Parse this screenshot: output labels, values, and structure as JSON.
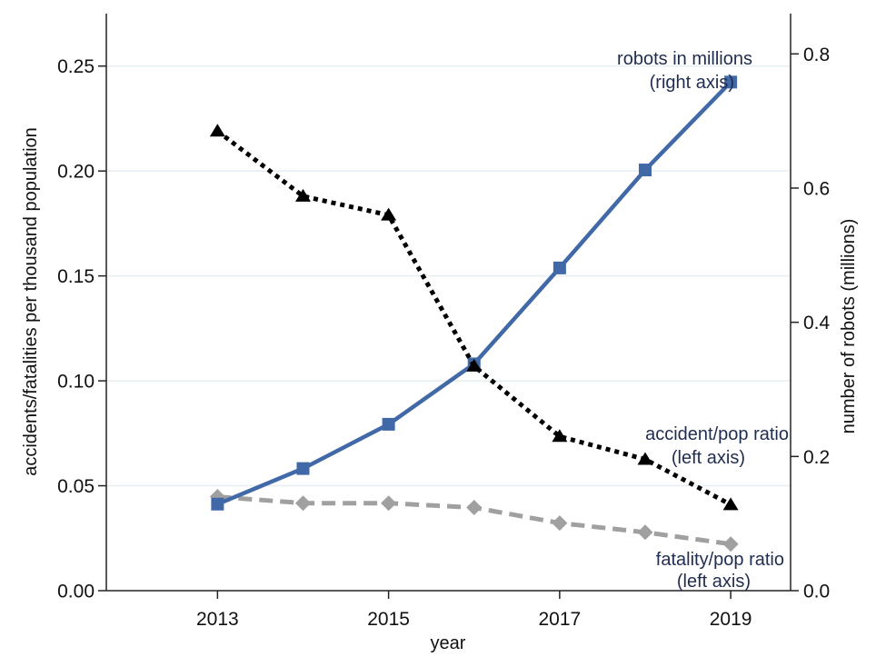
{
  "chart_data": {
    "type": "line",
    "title": "",
    "xlabel": "year",
    "ylabel_left": "accidents/fatalities per thousand population",
    "ylabel_right": "number of robots (millions)",
    "x": [
      2013,
      2014,
      2015,
      2016,
      2017,
      2018,
      2019
    ],
    "xlim": [
      2011.7,
      2019.7
    ],
    "x_ticks": [
      2013,
      2015,
      2017,
      2019
    ],
    "x_tick_labels": [
      "2013",
      "2015",
      "2017",
      "2019"
    ],
    "ylim_left": [
      0,
      0.275
    ],
    "y_ticks_left": [
      0,
      0.05,
      0.1,
      0.15,
      0.2,
      0.25
    ],
    "y_tick_labels_left": [
      "0.00",
      "0.05",
      "0.10",
      "0.15",
      "0.20",
      "0.25"
    ],
    "ylim_right": [
      0,
      0.86
    ],
    "y_ticks_right": [
      0,
      0.2,
      0.4,
      0.6,
      0.8
    ],
    "y_tick_labels_right": [
      "0.0",
      "0.2",
      "0.4",
      "0.6",
      "0.8"
    ],
    "grid": true,
    "legend": "none (inline annotations)",
    "series": [
      {
        "name": "robots in millions",
        "axis": "right",
        "style": "solid",
        "marker": "square",
        "color": "#4169a8",
        "values": [
          0.129,
          0.182,
          0.248,
          0.338,
          0.481,
          0.627,
          0.758
        ],
        "annotation": [
          "robots in millions",
          "(right axis)"
        ]
      },
      {
        "name": "accident/pop ratio",
        "axis": "left",
        "style": "dotted",
        "marker": "triangle",
        "color": "#000000",
        "values": [
          0.219,
          0.188,
          0.179,
          0.107,
          0.0735,
          0.0626,
          0.041
        ],
        "annotation": [
          "accident/pop ratio",
          "(left axis)"
        ]
      },
      {
        "name": "fatality/pop ratio",
        "axis": "left",
        "style": "dashed",
        "marker": "diamond",
        "color": "#a0a0a0",
        "values": [
          0.0448,
          0.0417,
          0.0417,
          0.0396,
          0.0322,
          0.0278,
          0.0222
        ],
        "annotation": [
          "fatality/pop ratio",
          "(left axis)"
        ]
      }
    ],
    "colors": {
      "grid": "#e6eef2",
      "axis": "#222222",
      "annotation_text": "#1f2d50"
    }
  }
}
